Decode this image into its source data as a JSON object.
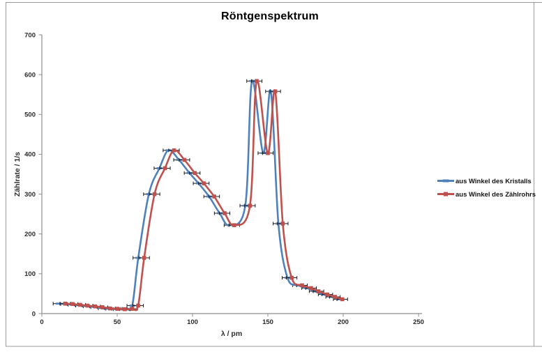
{
  "window": {
    "background": "#FFFFFF",
    "border_color": "#9B9B9B"
  },
  "chart_data": {
    "type": "line",
    "title": "Röntgenspektrum",
    "xlabel": "λ / pm",
    "ylabel": "Zählrate / 1/s",
    "xlim": [
      0,
      250
    ],
    "ylim": [
      0,
      700
    ],
    "x_ticks": [
      0,
      50,
      100,
      150,
      200,
      250
    ],
    "y_ticks": [
      0,
      100,
      200,
      300,
      400,
      500,
      600,
      700
    ],
    "grid": false,
    "legend_position": "right",
    "axis_color": "#8C8C8C",
    "error_bar_color": "#1A1A1A",
    "x_error": 3.5,
    "series": [
      {
        "name": "aus Winkel des Kristalls",
        "color": "#4F81BD",
        "marker": "dash",
        "x": [
          11,
          16,
          21,
          26,
          31,
          36,
          41,
          46,
          51,
          56,
          60,
          64,
          71,
          78,
          84,
          91,
          98,
          104,
          111,
          118,
          124.5,
          135,
          139.5,
          147,
          152,
          157,
          163,
          170,
          176,
          181,
          187,
          192,
          197
        ],
        "y": [
          25,
          24,
          22,
          20,
          18,
          16,
          13,
          12,
          11,
          12,
          20,
          140,
          300,
          365,
          410,
          386,
          353,
          327,
          294,
          252,
          222,
          271,
          584,
          403,
          558,
          226,
          90,
          71,
          64,
          56,
          48,
          42,
          36
        ]
      },
      {
        "name": "aus Winkel des Zählrohrs",
        "color": "#C0504D",
        "marker": "square",
        "x": [
          15.5,
          20.4,
          25.4,
          30.3,
          35.3,
          40.2,
          45.2,
          50.1,
          55.0,
          60.0,
          63.9,
          67.9,
          74.8,
          81.7,
          87.7,
          94.6,
          101.5,
          107.5,
          114.4,
          121.3,
          127.7,
          138.1,
          142.6,
          150.0,
          154.9,
          159.9,
          165.8,
          172.7,
          178.7,
          183.6,
          189.5,
          194.5,
          199.4
        ],
        "y": [
          25,
          24,
          22,
          20,
          18,
          16,
          13,
          12,
          11,
          12,
          20,
          140,
          300,
          365,
          410,
          386,
          353,
          327,
          294,
          252,
          222,
          271,
          584,
          403,
          558,
          226,
          90,
          71,
          64,
          56,
          48,
          42,
          36
        ]
      }
    ]
  }
}
